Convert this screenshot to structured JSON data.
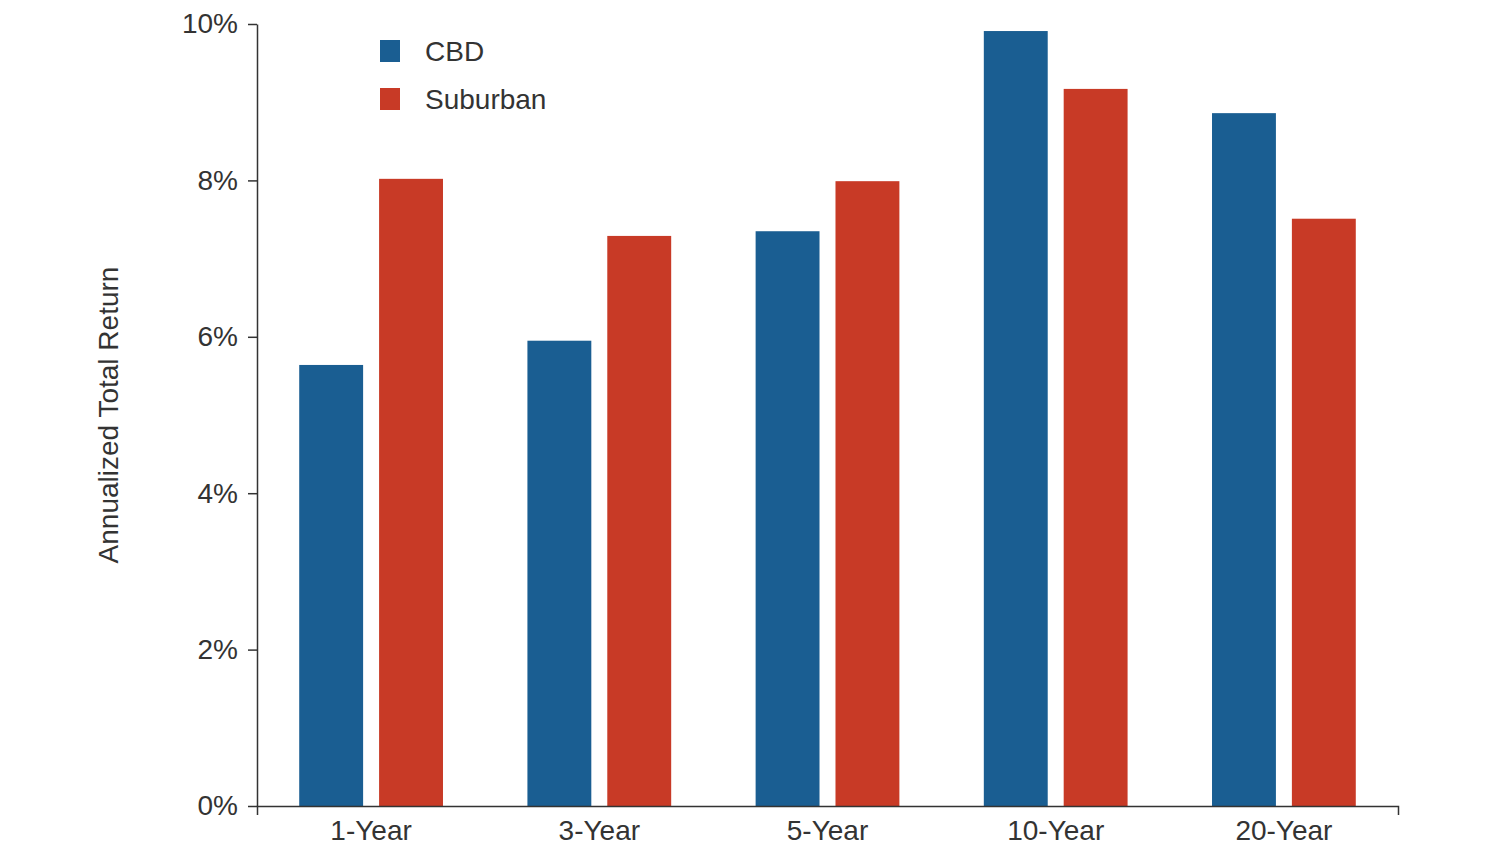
{
  "chart_data": {
    "type": "bar",
    "y_label": "Annualized Total Return",
    "categories": [
      "1-Year",
      "3-Year",
      "5-Year",
      "10-Year",
      "20-Year"
    ],
    "series": [
      {
        "name": "CBD",
        "color": "#1a5e92",
        "values": [
          5.64,
          5.95,
          7.35,
          9.91,
          8.86
        ]
      },
      {
        "name": "Suburban",
        "color": "#c83a26",
        "values": [
          8.02,
          7.29,
          7.99,
          9.17,
          7.51
        ]
      }
    ],
    "ylim": [
      0,
      10
    ],
    "yticks": [
      {
        "value": 0,
        "label": "0%"
      },
      {
        "value": 2,
        "label": "2%"
      },
      {
        "value": 4,
        "label": "4%"
      },
      {
        "value": 6,
        "label": "6%"
      },
      {
        "value": 8,
        "label": "8%"
      },
      {
        "value": 10,
        "label": "10%"
      }
    ],
    "grid": false,
    "legend": "upper left"
  }
}
